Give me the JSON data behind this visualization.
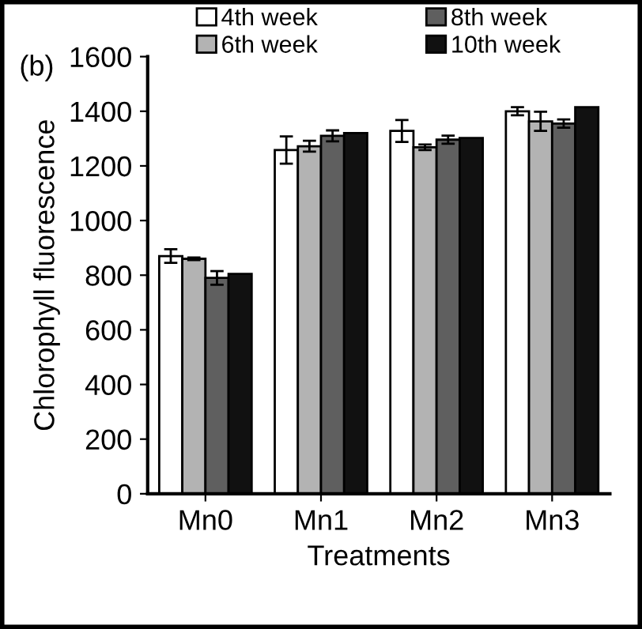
{
  "chart_data": {
    "type": "bar",
    "ylabel": "Chlorophyll fluorescence",
    "xlabel": "Treatments",
    "annotations": [
      "(b)"
    ],
    "categories": [
      "Mn0",
      "Mn1",
      "Mn2",
      "Mn3"
    ],
    "series": [
      {
        "name": "4th week",
        "color": "#ffffff",
        "values": [
          870,
          1258,
          1328,
          1400
        ],
        "errors": [
          25,
          50,
          40,
          15
        ]
      },
      {
        "name": "6th week",
        "color": "#b3b3b3",
        "values": [
          860,
          1272,
          1268,
          1363
        ],
        "errors": [
          5,
          20,
          10,
          35
        ]
      },
      {
        "name": "8th week",
        "color": "#5f5f5f",
        "values": [
          790,
          1310,
          1296,
          1355
        ],
        "errors": [
          25,
          20,
          15,
          15
        ]
      },
      {
        "name": "10th week",
        "color": "#111111",
        "values": [
          805,
          1320,
          1302,
          1415
        ],
        "errors": [
          null,
          null,
          null,
          null
        ]
      }
    ],
    "ylim": [
      0,
      1600
    ],
    "yticks": [
      0,
      200,
      400,
      600,
      800,
      1000,
      1200,
      1400,
      1600
    ],
    "grid": false,
    "legend": "top"
  }
}
